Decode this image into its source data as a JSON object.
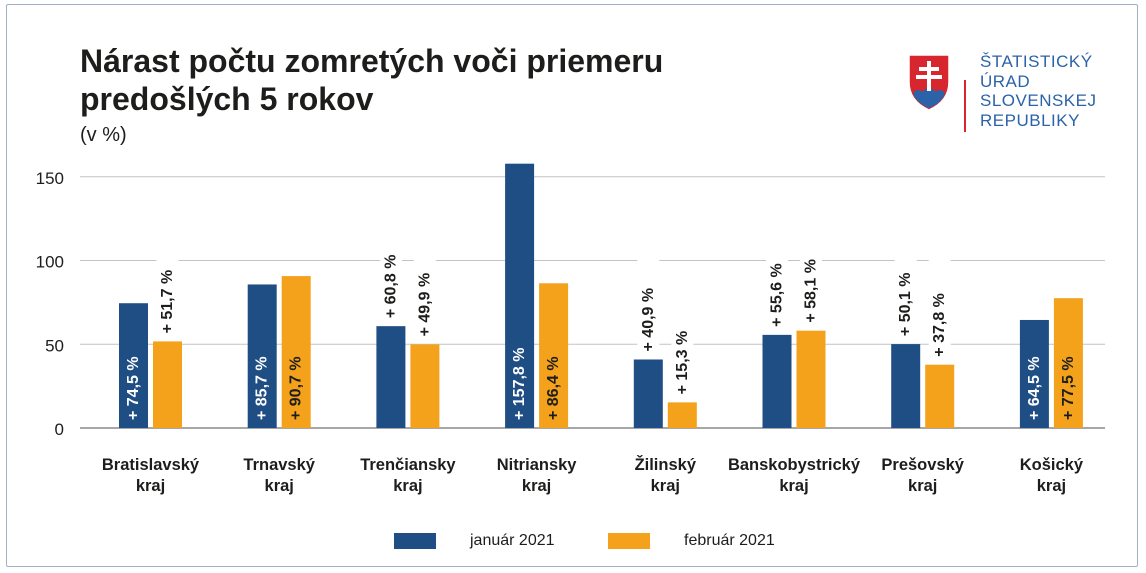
{
  "title": "Nárast počtu zomretých voči priemeru predošlých 5 rokov",
  "unit": "(v %)",
  "logo": {
    "lines": [
      "ŠTATISTICKÝ",
      "ÚRAD",
      "SLOVENSKEJ",
      "REPUBLIKY"
    ],
    "colors": {
      "red": "#d7262e",
      "blue": "#2b62a8",
      "white": "#ffffff"
    }
  },
  "legend": [
    {
      "label": "január 2021",
      "color": "#1f4e85"
    },
    {
      "label": "február 2021",
      "color": "#f4a11c"
    }
  ],
  "chart_data": {
    "type": "bar",
    "title": "Nárast počtu zomretých voči priemeru predošlých 5 rokov",
    "ylabel": "(v %)",
    "xlabel": "",
    "ylim": [
      0,
      165
    ],
    "yticks": [
      0,
      50,
      100,
      150
    ],
    "grid": true,
    "legend_position": "bottom",
    "categories": [
      [
        "Bratislavský",
        "kraj"
      ],
      [
        "Trnavský",
        "kraj"
      ],
      [
        "Trenčiansky",
        "kraj"
      ],
      [
        "Nitriansky",
        "kraj"
      ],
      [
        "Žilinský",
        "kraj"
      ],
      [
        "Banskobystrický",
        "kraj"
      ],
      [
        "Prešovský",
        "kraj"
      ],
      [
        "Košický",
        "kraj"
      ]
    ],
    "series": [
      {
        "name": "január 2021",
        "color": "#1f4e85",
        "values": [
          74.5,
          85.7,
          60.8,
          157.8,
          40.9,
          55.6,
          50.1,
          64.5
        ],
        "labels": [
          "+ 74,5 %",
          "+ 85,7 %",
          "+ 60,8 %",
          "+ 157,8 %",
          "+ 40,9 %",
          "+ 55,6 %",
          "+ 50,1 %",
          "+ 64,5 %"
        ]
      },
      {
        "name": "február 2021",
        "color": "#f4a11c",
        "values": [
          51.7,
          90.7,
          49.9,
          86.4,
          15.3,
          58.1,
          37.8,
          77.5
        ],
        "labels": [
          "+ 51,7 %",
          "+ 90,7 %",
          "+ 49,9 %",
          "+ 86,4 %",
          "+ 15,3 %",
          "+ 58,1 %",
          "+ 37,8 %",
          "+ 77,5 %"
        ]
      }
    ]
  }
}
